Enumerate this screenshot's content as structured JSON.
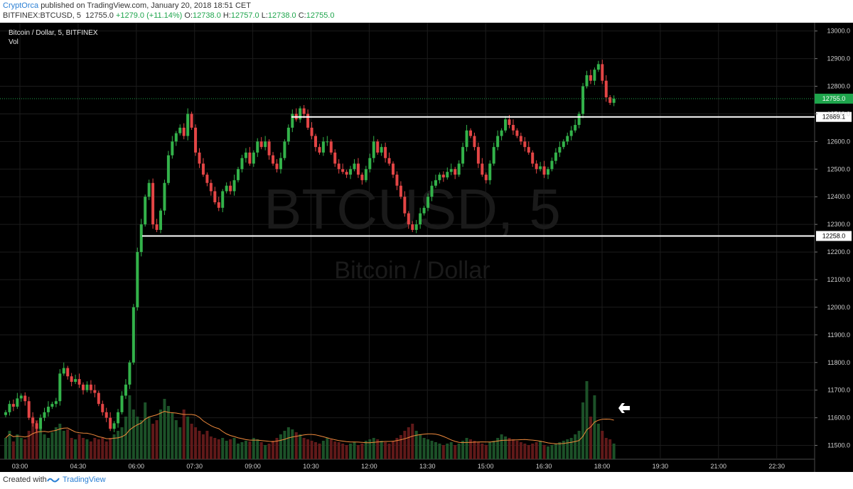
{
  "header": {
    "author": "CryptOrca",
    "published": "published on TradingView.com, January 20, 2018 18:51 CET",
    "symbol": "BITFINEX:BTCUSD, 5",
    "last": "12755.0",
    "change": "+1279.0 (+11.14%)",
    "o_label": "O:",
    "o": "12738.0",
    "h_label": "H:",
    "h": "12757.0",
    "l_label": "L:",
    "l": "12738.0",
    "c_label": "C:",
    "c": "12755.0"
  },
  "footer": {
    "created": "Created with",
    "brand": "TradingView"
  },
  "chart_data": {
    "type": "candlestick",
    "title": "Bitcoin / Dollar, 5, BITFINEX",
    "volume_label": "Vol",
    "watermark_symbol": "BTCUSD, 5",
    "watermark_name": "Bitcoin / Dollar",
    "ylim": [
      11450,
      13030
    ],
    "y_ticks": [
      11500,
      11600,
      11700,
      11800,
      11900,
      12000,
      12100,
      12200,
      12300,
      12400,
      12500,
      12600,
      12700,
      12800,
      12900,
      13000
    ],
    "y_tick_labels": [
      "11500.0",
      "11600.0",
      "11700.0",
      "11800.0",
      "11900.0",
      "12000.0",
      "12100.0",
      "12200.0",
      "12300.0",
      "12400.0",
      "12500.0",
      "12600.0",
      "12700.0",
      "12800.0",
      "12900.0",
      "13000.0"
    ],
    "x_tick_labels": [
      "03:00",
      "04:30",
      "06:00",
      "07:30",
      "09:00",
      "10:30",
      "12:00",
      "13:30",
      "15:00",
      "16:30",
      "18:00",
      "19:30",
      "21:00",
      "22:30"
    ],
    "price_tag": "12755.0",
    "levels": [
      {
        "value": 12689.1,
        "label": "12689.1"
      },
      {
        "value": 12258.0,
        "label": "12258.0"
      }
    ],
    "closes": [
      11620,
      11650,
      11640,
      11670,
      11680,
      11660,
      11600,
      11580,
      11560,
      11600,
      11620,
      11640,
      11650,
      11660,
      11760,
      11780,
      11750,
      11730,
      11740,
      11720,
      11700,
      11720,
      11700,
      11690,
      11650,
      11620,
      11600,
      11560,
      11580,
      11620,
      11680,
      11720,
      11800,
      12000,
      12200,
      12300,
      12400,
      12450,
      12300,
      12280,
      12350,
      12450,
      12550,
      12600,
      12630,
      12650,
      12620,
      12700,
      12650,
      12560,
      12520,
      12480,
      12450,
      12420,
      12380,
      12360,
      12420,
      12440,
      12420,
      12460,
      12500,
      12540,
      12560,
      12520,
      12560,
      12600,
      12580,
      12600,
      12550,
      12520,
      12500,
      12540,
      12600,
      12650,
      12700,
      12680,
      12720,
      12700,
      12650,
      12620,
      12580,
      12560,
      12600,
      12600,
      12560,
      12520,
      12500,
      12490,
      12480,
      12500,
      12520,
      12480,
      12460,
      12500,
      12540,
      12600,
      12560,
      12580,
      12540,
      12520,
      12480,
      12440,
      12400,
      12340,
      12300,
      12280,
      12300,
      12340,
      12360,
      12400,
      12440,
      12460,
      12480,
      12470,
      12490,
      12500,
      12480,
      12520,
      12580,
      12640,
      12620,
      12580,
      12520,
      12480,
      12460,
      12520,
      12580,
      12620,
      12640,
      12680,
      12660,
      12640,
      12620,
      12600,
      12580,
      12560,
      12520,
      12500,
      12510,
      12480,
      12500,
      12530,
      12560,
      12580,
      12600,
      12620,
      12640,
      12660,
      12700,
      12800,
      12840,
      12820,
      12860,
      12880,
      12820,
      12760,
      12740,
      12755
    ],
    "volumes": [
      30,
      40,
      25,
      35,
      30,
      28,
      40,
      60,
      55,
      45,
      35,
      30,
      38,
      45,
      50,
      40,
      42,
      30,
      28,
      35,
      30,
      28,
      25,
      30,
      28,
      30,
      25,
      30,
      35,
      40,
      45,
      60,
      90,
      70,
      60,
      55,
      80,
      60,
      50,
      55,
      70,
      85,
      75,
      65,
      55,
      45,
      70,
      60,
      50,
      45,
      40,
      35,
      40,
      32,
      30,
      28,
      30,
      26,
      28,
      30,
      22,
      24,
      26,
      25,
      30,
      28,
      24,
      20,
      22,
      26,
      30,
      35,
      40,
      45,
      42,
      38,
      35,
      30,
      28,
      26,
      24,
      22,
      26,
      30,
      28,
      25,
      24,
      22,
      20,
      22,
      24,
      20,
      22,
      26,
      28,
      30,
      28,
      26,
      24,
      22,
      26,
      30,
      34,
      40,
      45,
      50,
      40,
      35,
      30,
      28,
      26,
      24,
      22,
      20,
      22,
      24,
      20,
      22,
      26,
      30,
      28,
      26,
      24,
      22,
      20,
      24,
      26,
      30,
      35,
      32,
      30,
      28,
      26,
      24,
      22,
      20,
      22,
      24,
      26,
      20,
      18,
      20,
      22,
      24,
      26,
      28,
      30,
      35,
      40,
      80,
      110,
      60,
      90,
      50,
      40,
      30,
      28,
      22
    ]
  }
}
